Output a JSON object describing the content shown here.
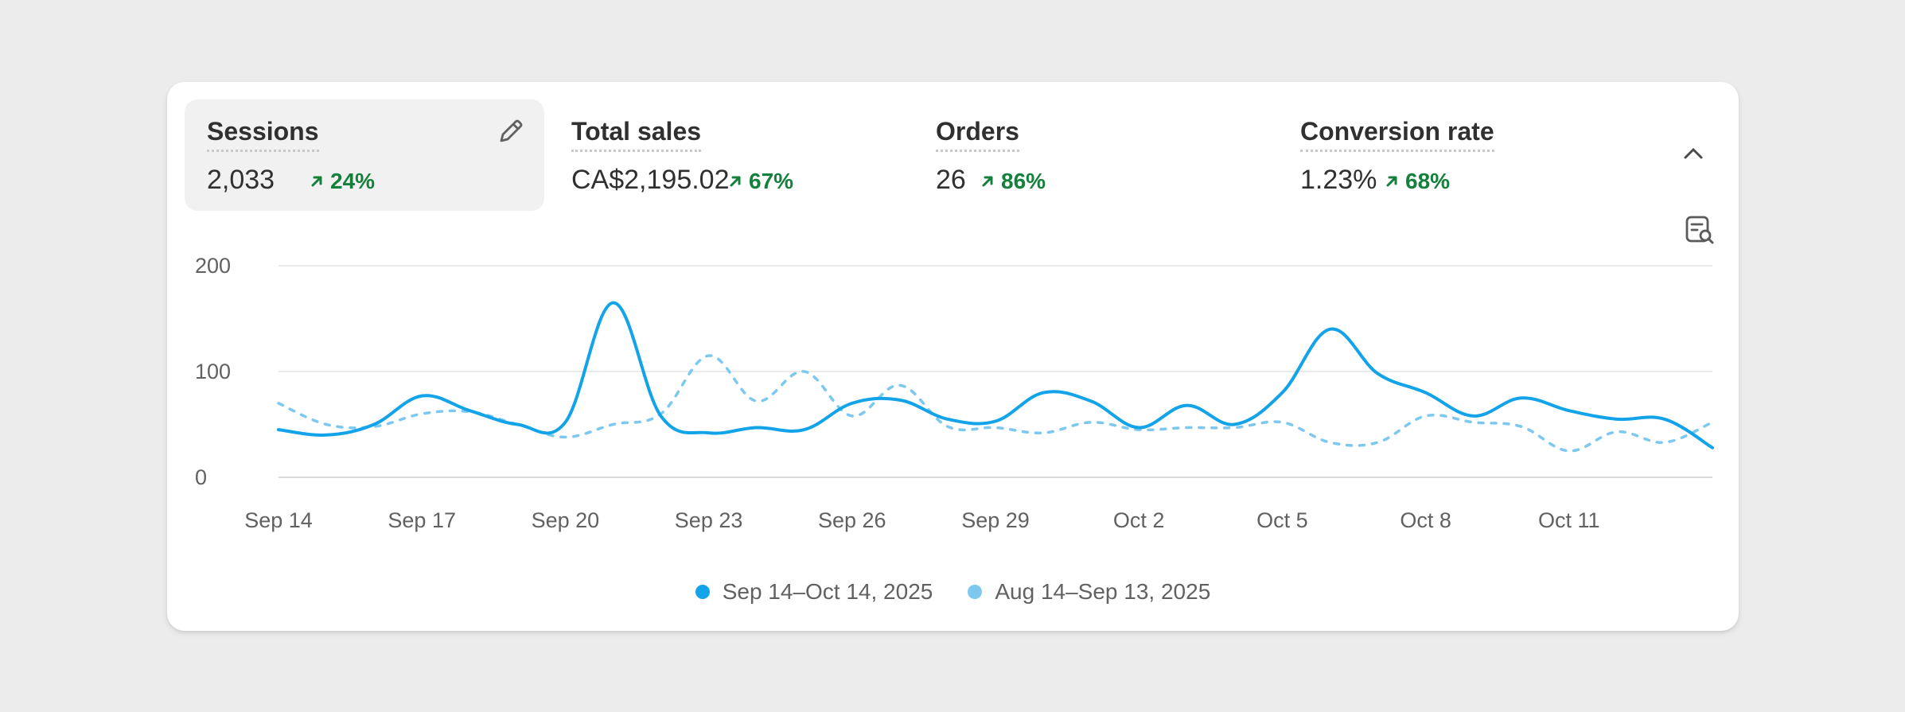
{
  "metrics": [
    {
      "label": "Sessions",
      "value": "2,033",
      "change": "24%",
      "active": true
    },
    {
      "label": "Total sales",
      "value": "CA$2,195.02",
      "change": "67%",
      "active": false
    },
    {
      "label": "Orders",
      "value": "26",
      "change": "86%",
      "active": false
    },
    {
      "label": "Conversion rate",
      "value": "1.23%",
      "change": "68%",
      "active": false
    }
  ],
  "icons": {
    "edit": "pencil-icon",
    "collapse": "chevron-up-icon",
    "report": "report-search-icon",
    "trend": "arrow-up-right-icon"
  },
  "colors": {
    "current": "#13a3e8",
    "previous": "#7cc8ee",
    "positive": "#14803c"
  },
  "chart_data": {
    "type": "line",
    "x": [
      "Sep 14",
      "Sep 15",
      "Sep 16",
      "Sep 17",
      "Sep 18",
      "Sep 19",
      "Sep 20",
      "Sep 21",
      "Sep 22",
      "Sep 23",
      "Sep 24",
      "Sep 25",
      "Sep 26",
      "Sep 27",
      "Sep 28",
      "Sep 29",
      "Sep 30",
      "Oct 1",
      "Oct 2",
      "Oct 3",
      "Oct 4",
      "Oct 5",
      "Oct 6",
      "Oct 7",
      "Oct 8",
      "Oct 9",
      "Oct 10",
      "Oct 11",
      "Oct 12",
      "Oct 13",
      "Oct 14"
    ],
    "x_ticks": [
      "Sep 14",
      "Sep 17",
      "Sep 20",
      "Sep 23",
      "Sep 26",
      "Sep 29",
      "Oct 2",
      "Oct 5",
      "Oct 8",
      "Oct 11"
    ],
    "y_ticks": [
      0,
      100,
      200
    ],
    "ylim": [
      0,
      200
    ],
    "grid": true,
    "legend_position": "bottom-center",
    "series": [
      {
        "name": "Sep 14–Oct 14, 2025",
        "style": "solid",
        "values": [
          45,
          40,
          50,
          77,
          63,
          50,
          52,
          165,
          58,
          42,
          47,
          45,
          70,
          73,
          55,
          53,
          80,
          72,
          47,
          68,
          50,
          80,
          140,
          98,
          80,
          58,
          75,
          63,
          55,
          55,
          28
        ]
      },
      {
        "name": "Aug 14–Sep 13, 2025",
        "style": "dashed",
        "values": [
          70,
          50,
          48,
          60,
          62,
          50,
          38,
          50,
          60,
          115,
          72,
          100,
          58,
          87,
          48,
          47,
          42,
          52,
          45,
          47,
          47,
          52,
          33,
          33,
          58,
          52,
          48,
          25,
          43,
          33,
          52
        ]
      }
    ]
  }
}
